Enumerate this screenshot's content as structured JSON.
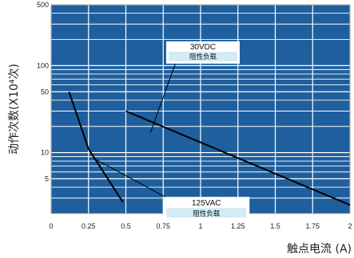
{
  "chart_data": {
    "type": "line",
    "xlabel": "触点电流 (A)",
    "ylabel": "动作次数(X10⁴次)",
    "xlim": [
      0,
      2
    ],
    "ylim": [
      2,
      500
    ],
    "yscale": "log",
    "grid": true,
    "x_ticks": [
      "0",
      "0.25",
      "0.5",
      "0.75",
      "1",
      "1.25",
      "1.5",
      "1.75",
      "2"
    ],
    "y_ticks": [
      "500",
      "100",
      "50",
      "10",
      "5"
    ],
    "series": [
      {
        "name": "30VDC",
        "subtitle": "阻性负载",
        "x": [
          0.5,
          2.0
        ],
        "y": [
          30,
          2.5
        ]
      },
      {
        "name": "125VAC",
        "subtitle": "阻性负载",
        "x": [
          0.12,
          0.25,
          0.48
        ],
        "y": [
          50,
          11,
          2.7
        ]
      }
    ],
    "colors": {
      "plot_bg": "#1f5f9e",
      "grid_line": "#ffffff",
      "curve": "#000000"
    }
  }
}
